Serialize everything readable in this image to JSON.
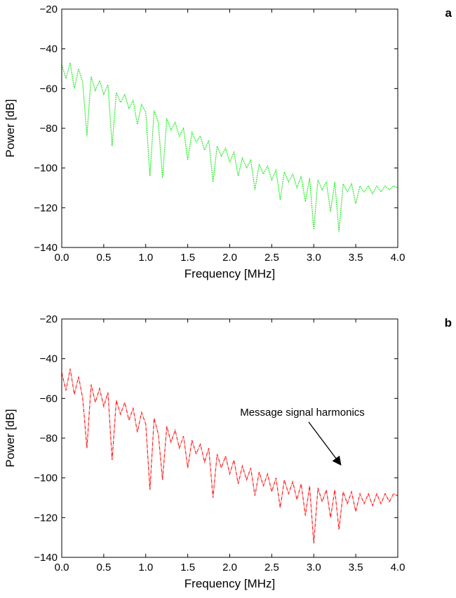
{
  "chart_data": [
    {
      "type": "line",
      "panel_label": "a",
      "xlabel": "Frequency [MHz]",
      "ylabel": "Power [dB]",
      "xlim": [
        0,
        4
      ],
      "ylim": [
        -140,
        -20
      ],
      "xticks": [
        {
          "value": 0,
          "label": "0.0"
        },
        {
          "value": 0.5,
          "label": "0.5"
        },
        {
          "value": 1,
          "label": "1.0"
        },
        {
          "value": 1.5,
          "label": "1.5"
        },
        {
          "value": 2,
          "label": "2.0"
        },
        {
          "value": 2.5,
          "label": "2.5"
        },
        {
          "value": 3,
          "label": "3.0"
        },
        {
          "value": 3.5,
          "label": "3.5"
        },
        {
          "value": 4,
          "label": "4.0"
        }
      ],
      "yticks": [
        {
          "value": -140,
          "label": "−140"
        },
        {
          "value": -120,
          "label": "−120"
        },
        {
          "value": -100,
          "label": "−100"
        },
        {
          "value": -80,
          "label": "−80"
        },
        {
          "value": -60,
          "label": "−60"
        },
        {
          "value": -40,
          "label": "−40"
        },
        {
          "value": -20,
          "label": "−20"
        }
      ],
      "x": [
        0,
        0.05,
        0.1,
        0.15,
        0.2,
        0.25,
        0.3,
        0.35,
        0.4,
        0.45,
        0.5,
        0.55,
        0.6,
        0.65,
        0.7,
        0.75,
        0.8,
        0.85,
        0.9,
        0.95,
        1,
        1.05,
        1.1,
        1.15,
        1.2,
        1.25,
        1.3,
        1.35,
        1.4,
        1.45,
        1.5,
        1.55,
        1.6,
        1.65,
        1.7,
        1.75,
        1.8,
        1.85,
        1.9,
        1.95,
        2,
        2.05,
        2.1,
        2.15,
        2.2,
        2.25,
        2.3,
        2.35,
        2.4,
        2.45,
        2.5,
        2.55,
        2.6,
        2.65,
        2.7,
        2.75,
        2.8,
        2.85,
        2.9,
        2.95,
        3,
        3.05,
        3.1,
        3.15,
        3.2,
        3.25,
        3.3,
        3.35,
        3.4,
        3.45,
        3.5,
        3.55,
        3.6,
        3.65,
        3.7,
        3.75,
        3.8,
        3.85,
        3.9,
        3.95,
        4
      ],
      "series": [
        {
          "color": "#22ee22",
          "values": [
            -48,
            -55,
            -47,
            -60,
            -50,
            -57,
            -84,
            -54,
            -61,
            -56,
            -63,
            -58,
            -89,
            -62,
            -67,
            -63,
            -70,
            -66,
            -78,
            -68,
            -72,
            -104,
            -71,
            -77,
            -105,
            -75,
            -81,
            -77,
            -84,
            -80,
            -96,
            -82,
            -87,
            -84,
            -91,
            -86,
            -107,
            -89,
            -94,
            -90,
            -97,
            -92,
            -104,
            -95,
            -100,
            -96,
            -111,
            -98,
            -103,
            -99,
            -106,
            -101,
            -116,
            -102,
            -107,
            -103,
            -110,
            -104,
            -117,
            -105,
            -131,
            -106,
            -111,
            -107,
            -122,
            -107,
            -132,
            -108,
            -112,
            -108,
            -118,
            -109,
            -112,
            -109,
            -113,
            -109,
            -112,
            -109,
            -111,
            -109,
            -110
          ]
        }
      ]
    },
    {
      "type": "line",
      "panel_label": "b",
      "xlabel": "Frequency [MHz]",
      "ylabel": "Power [dB]",
      "xlim": [
        0,
        4
      ],
      "ylim": [
        -140,
        -20
      ],
      "xticks": [
        {
          "value": 0,
          "label": "0.0"
        },
        {
          "value": 0.5,
          "label": "0.5"
        },
        {
          "value": 1,
          "label": "1.0"
        },
        {
          "value": 1.5,
          "label": "1.5"
        },
        {
          "value": 2,
          "label": "2.0"
        },
        {
          "value": 2.5,
          "label": "2.5"
        },
        {
          "value": 3,
          "label": "3.0"
        },
        {
          "value": 3.5,
          "label": "3.5"
        },
        {
          "value": 4,
          "label": "4.0"
        }
      ],
      "yticks": [
        {
          "value": -140,
          "label": "−140"
        },
        {
          "value": -120,
          "label": "−120"
        },
        {
          "value": -100,
          "label": "−100"
        },
        {
          "value": -80,
          "label": "−80"
        },
        {
          "value": -60,
          "label": "−60"
        },
        {
          "value": -40,
          "label": "−40"
        },
        {
          "value": -20,
          "label": "−20"
        }
      ],
      "annotation": "Message signal harmonics",
      "x": [
        0,
        0.05,
        0.1,
        0.15,
        0.2,
        0.25,
        0.3,
        0.35,
        0.4,
        0.45,
        0.5,
        0.55,
        0.6,
        0.65,
        0.7,
        0.75,
        0.8,
        0.85,
        0.9,
        0.95,
        1,
        1.05,
        1.1,
        1.15,
        1.2,
        1.25,
        1.3,
        1.35,
        1.4,
        1.45,
        1.5,
        1.55,
        1.6,
        1.65,
        1.7,
        1.75,
        1.8,
        1.85,
        1.9,
        1.95,
        2,
        2.05,
        2.1,
        2.15,
        2.2,
        2.25,
        2.3,
        2.35,
        2.4,
        2.45,
        2.5,
        2.55,
        2.6,
        2.65,
        2.7,
        2.75,
        2.8,
        2.85,
        2.9,
        2.95,
        3,
        3.05,
        3.1,
        3.15,
        3.2,
        3.25,
        3.3,
        3.35,
        3.4,
        3.45,
        3.5,
        3.55,
        3.6,
        3.65,
        3.7,
        3.75,
        3.8,
        3.85,
        3.9,
        3.95,
        4
      ],
      "series": [
        {
          "color": "#ff1a1a",
          "values": [
            -47,
            -56,
            -45,
            -58,
            -49,
            -60,
            -85,
            -53,
            -62,
            -55,
            -64,
            -57,
            -91,
            -61,
            -68,
            -62,
            -71,
            -65,
            -77,
            -67,
            -73,
            -106,
            -70,
            -78,
            -101,
            -74,
            -82,
            -76,
            -85,
            -79,
            -95,
            -81,
            -88,
            -83,
            -92,
            -85,
            -110,
            -88,
            -95,
            -89,
            -98,
            -91,
            -103,
            -94,
            -101,
            -95,
            -109,
            -97,
            -104,
            -98,
            -107,
            -100,
            -115,
            -101,
            -108,
            -102,
            -111,
            -103,
            -119,
            -104,
            -133,
            -105,
            -112,
            -106,
            -120,
            -106,
            -126,
            -107,
            -113,
            -107,
            -117,
            -108,
            -113,
            -108,
            -114,
            -108,
            -113,
            -108,
            -112,
            -108,
            -109
          ]
        }
      ]
    }
  ]
}
